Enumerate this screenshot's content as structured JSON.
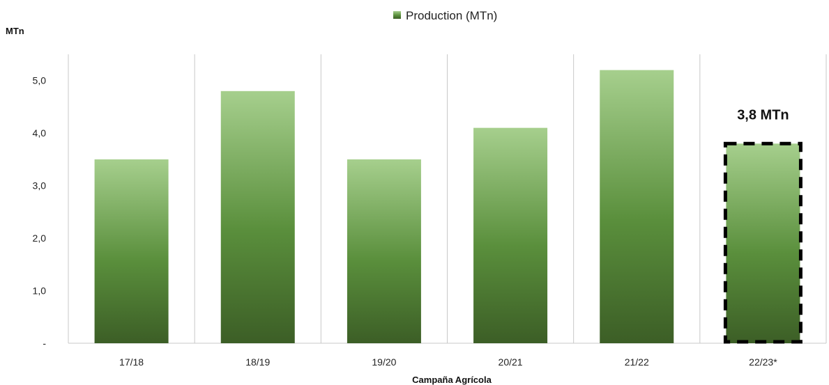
{
  "chart_data": {
    "type": "bar",
    "title": "",
    "ylabel": "MTn",
    "xlabel": "Campaña Agrícola",
    "categories": [
      "17/18",
      "18/19",
      "19/20",
      "20/21",
      "21/22",
      "22/23*"
    ],
    "series": [
      {
        "name": "Production (MTn)",
        "values": [
          3.5,
          4.8,
          3.5,
          4.1,
          5.2,
          3.8
        ]
      }
    ],
    "ylim": [
      0,
      5.5
    ],
    "yticks": [
      0,
      1,
      2,
      3,
      4,
      5
    ],
    "ytick_labels": [
      "-",
      "1,0",
      "2,0",
      "3,0",
      "4,0",
      "5,0"
    ],
    "grid": "vertical",
    "legend": "top-center",
    "highlight": {
      "category": "22/23*",
      "label": "3,8 MTn",
      "style": "dashed-box"
    },
    "colors": {
      "bar_top": "#a6cf8d",
      "bar_mid": "#5a8f3c",
      "bar_bottom": "#3c5e26",
      "grid": "#c8c8c8"
    }
  }
}
